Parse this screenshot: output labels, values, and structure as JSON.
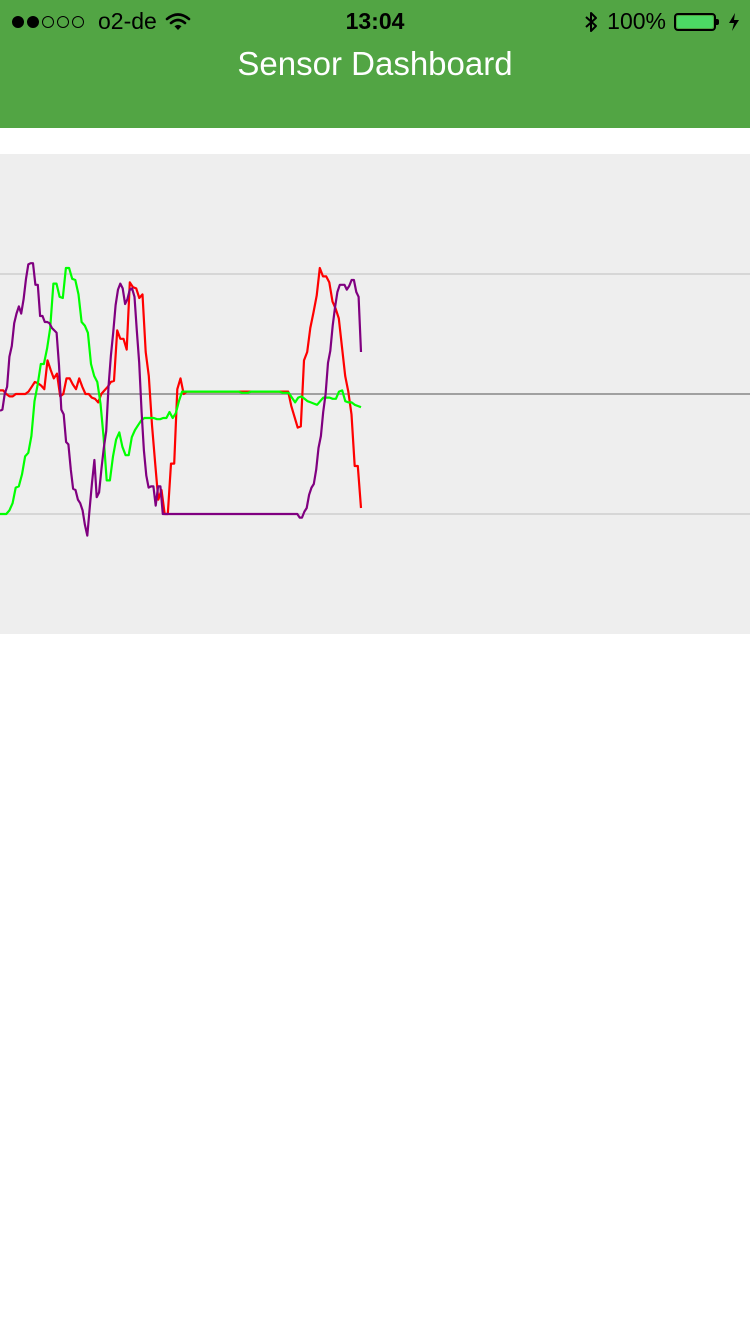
{
  "status_bar": {
    "signal_filled": 2,
    "signal_total": 5,
    "carrier": "o2-de",
    "time": "13:04",
    "battery_text": "100%",
    "battery_level": 1.0,
    "icons": [
      "wifi-icon",
      "bluetooth-icon",
      "battery-icon",
      "charging-icon"
    ]
  },
  "header": {
    "title": "Sensor Dashboard",
    "color": "#52a544"
  },
  "chart_data": {
    "type": "line",
    "background": "#eeeeee",
    "grid": true,
    "gridlines_y": [
      1,
      -1
    ],
    "zero_line": 0,
    "ylim": [
      -2,
      2
    ],
    "xlim": [
      0,
      250
    ],
    "series": [
      {
        "color": "#ff0000",
        "values": [
          0.03,
          0.03,
          0,
          -0.02,
          -0.02,
          0,
          0,
          0,
          0,
          0.02,
          0.06,
          0.1,
          0.09,
          0.07,
          0.04,
          0.28,
          0.2,
          0.13,
          0.17,
          -0.02,
          0,
          0.13,
          0.13,
          0.08,
          0.04,
          0.13,
          0.06,
          0,
          0,
          -0.03,
          -0.04,
          -0.07,
          0,
          0.03,
          0.06,
          0.1,
          0.11,
          0.53,
          0.46,
          0.46,
          0.37,
          0.93,
          0.89,
          0.88,
          0.8,
          0.83,
          0.35,
          0.15,
          -0.26,
          -0.58,
          -0.88,
          -0.8,
          -1,
          -1,
          -0.58,
          -0.58,
          0.04,
          0.13,
          0,
          0.02,
          0.02,
          0.02,
          0.02,
          0.02,
          0.02,
          0.02,
          0.02,
          0.02,
          0.02,
          0.02,
          0.02,
          0.02,
          0.02,
          0.02,
          0.02,
          0.02,
          0.02,
          0.02,
          0.02,
          0.02,
          0.02,
          0.02,
          0.02,
          0.02,
          0.02,
          0.02,
          0.02,
          0.02,
          0.02,
          0.02,
          0.02,
          0.02,
          -0.1,
          -0.19,
          -0.28,
          -0.27,
          0.28,
          0.35,
          0.55,
          0.68,
          0.82,
          1.05,
          0.98,
          0.98,
          0.93,
          0.77,
          0.71,
          0.63,
          0.39,
          0.15,
          0.02,
          -0.17,
          -0.6,
          -0.6,
          -0.95
        ],
        "line_width": 2.2
      },
      {
        "color": "#00ff00",
        "values": [
          -1,
          -1,
          -1,
          -0.97,
          -0.91,
          -0.78,
          -0.77,
          -0.67,
          -0.52,
          -0.49,
          -0.35,
          -0.06,
          0.08,
          0.25,
          0.25,
          0.38,
          0.55,
          0.92,
          0.92,
          0.81,
          0.8,
          1.05,
          1.05,
          0.96,
          0.95,
          0.83,
          0.6,
          0.57,
          0.51,
          0.25,
          0.15,
          0.1,
          -0.08,
          -0.36,
          -0.72,
          -0.72,
          -0.52,
          -0.38,
          -0.32,
          -0.44,
          -0.51,
          -0.51,
          -0.36,
          -0.3,
          -0.26,
          -0.22,
          -0.2,
          -0.2,
          -0.2,
          -0.2,
          -0.21,
          -0.21,
          -0.2,
          -0.2,
          -0.15,
          -0.2,
          -0.16,
          -0.06,
          0.02,
          0.02,
          0.02,
          0.02,
          0.02,
          0.02,
          0.02,
          0.02,
          0.02,
          0.02,
          0.02,
          0.02,
          0.02,
          0.02,
          0.02,
          0.02,
          0.02,
          0.02,
          0.02,
          0.01,
          0.01,
          0.01,
          0.02,
          0.02,
          0.02,
          0.02,
          0.02,
          0.02,
          0.02,
          0.02,
          0.02,
          0.02,
          0.01,
          0.01,
          0.01,
          -0.03,
          -0.07,
          -0.03,
          -0.02,
          -0.04,
          -0.06,
          -0.07,
          -0.08,
          -0.09,
          -0.06,
          -0.03,
          -0.03,
          -0.03,
          -0.04,
          -0.04,
          0.02,
          0.03,
          -0.06,
          -0.07,
          -0.07,
          -0.09,
          -0.1,
          -0.11
        ],
        "line_width": 2.2
      },
      {
        "color": "#800080",
        "values": [
          -0.14,
          -0.13,
          0,
          0.06,
          0.31,
          0.4,
          0.59,
          0.67,
          0.73,
          0.67,
          0.79,
          0.96,
          1.08,
          1.09,
          1.09,
          0.91,
          0.91,
          0.65,
          0.65,
          0.6,
          0.6,
          0.59,
          0.55,
          0.53,
          0.51,
          0.24,
          -0.13,
          -0.17,
          -0.4,
          -0.42,
          -0.63,
          -0.79,
          -0.8,
          -0.88,
          -0.91,
          -0.97,
          -1.09,
          -1.18,
          -0.95,
          -0.74,
          -0.55,
          -0.86,
          -0.82,
          -0.62,
          -0.45,
          -0.31,
          0.06,
          0.32,
          0.52,
          0.74,
          0.87,
          0.92,
          0.88,
          0.75,
          0.79,
          0.87,
          0.88,
          0.81,
          0.53,
          0.26,
          -0.15,
          -0.47,
          -0.68,
          -0.78,
          -0.77,
          -0.77,
          -0.93,
          -0.77,
          -0.77,
          -1,
          -1,
          -1,
          -1,
          -1,
          -1,
          -1,
          -1,
          -1,
          -1,
          -1,
          -1,
          -1,
          -1,
          -1,
          -1,
          -1,
          -1,
          -1,
          -1,
          -1,
          -1,
          -1,
          -1,
          -1,
          -1,
          -1,
          -1,
          -1,
          -1,
          -1,
          -1,
          -1,
          -1,
          -1,
          -1,
          -1,
          -1,
          -1,
          -1,
          -1,
          -1,
          -1,
          -1,
          -1,
          -1,
          -1,
          -1,
          -1,
          -1,
          -1,
          -1,
          -1,
          -1,
          -1,
          -1,
          -1,
          -1,
          -1.03,
          -1.03,
          -0.98,
          -0.95,
          -0.84,
          -0.78,
          -0.75,
          -0.63,
          -0.45,
          -0.35,
          -0.15,
          0,
          0.26,
          0.36,
          0.57,
          0.72,
          0.85,
          0.91,
          0.91,
          0.91,
          0.87,
          0.9,
          0.95,
          0.95,
          0.85,
          0.81,
          0.35
        ],
        "line_width": 2.2
      }
    ]
  }
}
